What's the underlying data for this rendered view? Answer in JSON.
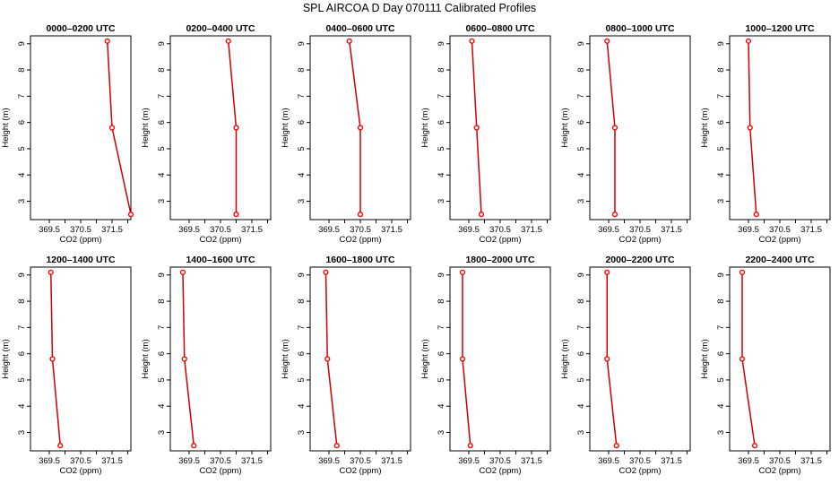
{
  "figure": {
    "title": "SPL AIRCOA D  Day 070111  Calibrated Profiles",
    "line_color": "#cc0000",
    "marker_color": "#ff0000"
  },
  "chart_data": [
    {
      "type": "line",
      "title": "0000–0200 UTC",
      "xlabel": "CO2 (ppm)",
      "ylabel": "Height (m)",
      "x_ticks": [
        "369.5",
        "370.5",
        "371.5"
      ],
      "y_ticks": [
        "3",
        "4",
        "5",
        "6",
        "7",
        "8",
        "9"
      ],
      "xlim": [
        368.9,
        372.1
      ],
      "ylim": [
        2.3,
        9.3
      ],
      "grid": false,
      "series": [
        {
          "x": [
            371.35,
            371.5,
            372.1
          ],
          "y": [
            9.1,
            5.8,
            2.5
          ]
        }
      ]
    },
    {
      "type": "line",
      "title": "0200–0400 UTC",
      "xlabel": "CO2 (ppm)",
      "ylabel": "Height (m)",
      "x_ticks": [
        "369.5",
        "370.5",
        "371.5"
      ],
      "y_ticks": [
        "3",
        "4",
        "5",
        "6",
        "7",
        "8",
        "9"
      ],
      "xlim": [
        368.9,
        372.1
      ],
      "ylim": [
        2.3,
        9.3
      ],
      "grid": false,
      "series": [
        {
          "x": [
            370.75,
            371.0,
            371.0
          ],
          "y": [
            9.1,
            5.8,
            2.5
          ]
        }
      ]
    },
    {
      "type": "line",
      "title": "0400–0600 UTC",
      "xlabel": "CO2 (ppm)",
      "ylabel": "Height (m)",
      "x_ticks": [
        "369.5",
        "370.5",
        "371.5"
      ],
      "y_ticks": [
        "3",
        "4",
        "5",
        "6",
        "7",
        "8",
        "9"
      ],
      "xlim": [
        368.9,
        372.1
      ],
      "ylim": [
        2.3,
        9.3
      ],
      "grid": false,
      "series": [
        {
          "x": [
            370.15,
            370.5,
            370.5
          ],
          "y": [
            9.1,
            5.8,
            2.5
          ]
        }
      ]
    },
    {
      "type": "line",
      "title": "0600–0800 UTC",
      "xlabel": "CO2 (ppm)",
      "ylabel": "Height (m)",
      "x_ticks": [
        "369.5",
        "370.5",
        "371.5"
      ],
      "y_ticks": [
        "3",
        "4",
        "5",
        "6",
        "7",
        "8",
        "9"
      ],
      "xlim": [
        368.9,
        372.1
      ],
      "ylim": [
        2.3,
        9.3
      ],
      "grid": false,
      "series": [
        {
          "x": [
            369.6,
            369.75,
            369.9
          ],
          "y": [
            9.1,
            5.8,
            2.5
          ]
        }
      ]
    },
    {
      "type": "line",
      "title": "0800–1000 UTC",
      "xlabel": "CO2 (ppm)",
      "ylabel": "Height (m)",
      "x_ticks": [
        "369.5",
        "370.5",
        "371.5"
      ],
      "y_ticks": [
        "3",
        "4",
        "5",
        "6",
        "7",
        "8",
        "9"
      ],
      "xlim": [
        368.9,
        372.1
      ],
      "ylim": [
        2.3,
        9.3
      ],
      "grid": false,
      "series": [
        {
          "x": [
            369.45,
            369.7,
            369.7
          ],
          "y": [
            9.1,
            5.8,
            2.5
          ]
        }
      ]
    },
    {
      "type": "line",
      "title": "1000–1200 UTC",
      "xlabel": "CO2 (ppm)",
      "ylabel": "Height (m)",
      "x_ticks": [
        "369.5",
        "370.5",
        "371.5"
      ],
      "y_ticks": [
        "3",
        "4",
        "5",
        "6",
        "7",
        "8",
        "9"
      ],
      "xlim": [
        368.9,
        372.1
      ],
      "ylim": [
        2.3,
        9.3
      ],
      "grid": false,
      "series": [
        {
          "x": [
            369.5,
            369.55,
            369.75
          ],
          "y": [
            9.1,
            5.8,
            2.5
          ]
        }
      ]
    },
    {
      "type": "line",
      "title": "1200–1400 UTC",
      "xlabel": "CO2 (ppm)",
      "ylabel": "Height (m)",
      "x_ticks": [
        "369.5",
        "370.5",
        "371.5"
      ],
      "y_ticks": [
        "3",
        "4",
        "5",
        "6",
        "7",
        "8",
        "9"
      ],
      "xlim": [
        368.9,
        372.1
      ],
      "ylim": [
        2.3,
        9.3
      ],
      "grid": false,
      "series": [
        {
          "x": [
            369.55,
            369.6,
            369.85
          ],
          "y": [
            9.1,
            5.8,
            2.5
          ]
        }
      ]
    },
    {
      "type": "line",
      "title": "1400–1600 UTC",
      "xlabel": "CO2 (ppm)",
      "ylabel": "Height (m)",
      "x_ticks": [
        "369.5",
        "370.5",
        "371.5"
      ],
      "y_ticks": [
        "3",
        "4",
        "5",
        "6",
        "7",
        "8",
        "9"
      ],
      "xlim": [
        368.9,
        372.1
      ],
      "ylim": [
        2.3,
        9.3
      ],
      "grid": false,
      "series": [
        {
          "x": [
            369.3,
            369.35,
            369.65
          ],
          "y": [
            9.1,
            5.8,
            2.5
          ]
        }
      ]
    },
    {
      "type": "line",
      "title": "1600–1800 UTC",
      "xlabel": "CO2 (ppm)",
      "ylabel": "Height (m)",
      "x_ticks": [
        "369.5",
        "370.5",
        "371.5"
      ],
      "y_ticks": [
        "3",
        "4",
        "5",
        "6",
        "7",
        "8",
        "9"
      ],
      "xlim": [
        368.9,
        372.1
      ],
      "ylim": [
        2.3,
        9.3
      ],
      "grid": false,
      "series": [
        {
          "x": [
            369.4,
            369.45,
            369.75
          ],
          "y": [
            9.1,
            5.8,
            2.5
          ]
        }
      ]
    },
    {
      "type": "line",
      "title": "1800–2000 UTC",
      "xlabel": "CO2 (ppm)",
      "ylabel": "Height (m)",
      "x_ticks": [
        "369.5",
        "370.5",
        "371.5"
      ],
      "y_ticks": [
        "3",
        "4",
        "5",
        "6",
        "7",
        "8",
        "9"
      ],
      "xlim": [
        368.9,
        372.1
      ],
      "ylim": [
        2.3,
        9.3
      ],
      "grid": false,
      "series": [
        {
          "x": [
            369.3,
            369.3,
            369.55
          ],
          "y": [
            9.1,
            5.8,
            2.5
          ]
        }
      ]
    },
    {
      "type": "line",
      "title": "2000–2200 UTC",
      "xlabel": "CO2 (ppm)",
      "ylabel": "Height (m)",
      "x_ticks": [
        "369.5",
        "370.5",
        "371.5"
      ],
      "y_ticks": [
        "3",
        "4",
        "5",
        "6",
        "7",
        "8",
        "9"
      ],
      "xlim": [
        368.9,
        372.1
      ],
      "ylim": [
        2.3,
        9.3
      ],
      "grid": false,
      "series": [
        {
          "x": [
            369.45,
            369.45,
            369.75
          ],
          "y": [
            9.1,
            5.8,
            2.5
          ]
        }
      ]
    },
    {
      "type": "line",
      "title": "2200–2400 UTC",
      "xlabel": "CO2 (ppm)",
      "ylabel": "Height (m)",
      "x_ticks": [
        "369.5",
        "370.5",
        "371.5"
      ],
      "y_ticks": [
        "3",
        "4",
        "5",
        "6",
        "7",
        "8",
        "9"
      ],
      "xlim": [
        368.9,
        372.1
      ],
      "ylim": [
        2.3,
        9.3
      ],
      "grid": false,
      "series": [
        {
          "x": [
            369.3,
            369.3,
            369.7
          ],
          "y": [
            9.1,
            5.8,
            2.5
          ]
        }
      ]
    }
  ]
}
